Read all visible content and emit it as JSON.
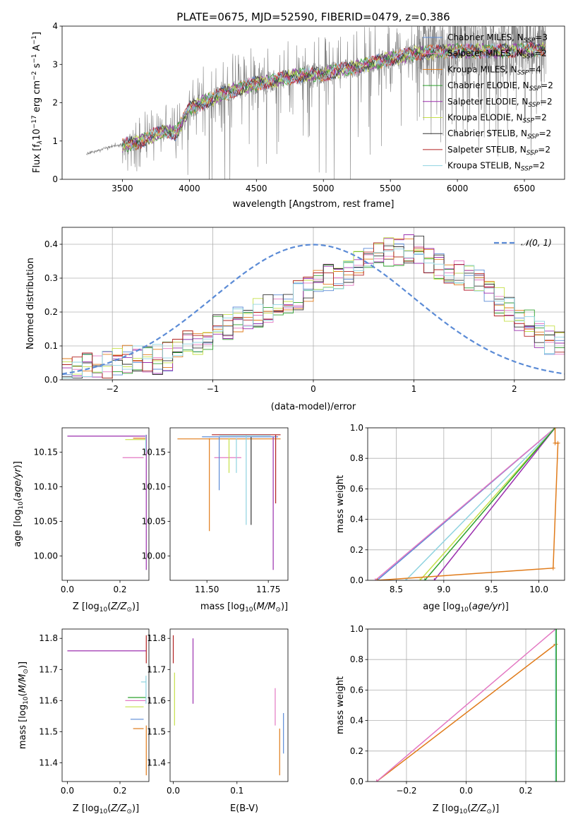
{
  "figure": {
    "title": "PLATE=0675, MJD=52590, FIBERID=0479, z=0.386"
  },
  "legend_items": [
    {
      "name": "Chabrier MILES, N",
      "sub": "SSP",
      "tail": "=3",
      "color": "#5b8bd6"
    },
    {
      "name": "Salpeter MILES, N",
      "sub": "SSP",
      "tail": "=2",
      "color": "#e377c2"
    },
    {
      "name": "Kroupa MILES, N",
      "sub": "SSP",
      "tail": "=4",
      "color": "#e07b1a"
    },
    {
      "name": "Chabrier ELODIE, N",
      "sub": "SSP",
      "tail": "=2",
      "color": "#2ca02c"
    },
    {
      "name": "Salpeter ELODIE, N",
      "sub": "SSP",
      "tail": "=2",
      "color": "#9b2fae"
    },
    {
      "name": "Kroupa ELODIE, N",
      "sub": "SSP",
      "tail": "=2",
      "color": "#c5e04a"
    },
    {
      "name": "Chabrier STELIB, N",
      "sub": "SSP",
      "tail": "=2",
      "color": "#333333"
    },
    {
      "name": "Salpeter STELIB, N",
      "sub": "SSP",
      "tail": "=2",
      "color": "#b22222"
    },
    {
      "name": "Kroupa STELIB, N",
      "sub": "SSP",
      "tail": "=2",
      "color": "#8fd3e0"
    }
  ],
  "chart_data": [
    {
      "id": "spectrum",
      "type": "line",
      "title": "PLATE=0675, MJD=52590, FIBERID=0479, z=0.386",
      "xlabel": "wavelength [Angstrom, rest frame]",
      "ylabel_parts": {
        "a": "Flux [f",
        "sub": "λ",
        "b": "10",
        "sup1": "−17",
        "c": " erg cm",
        "sup2": "−2",
        "d": " s",
        "sup3": "−1",
        "e": " A",
        "sup4": "−1",
        "f": "]"
      },
      "xlim": [
        3050,
        6800
      ],
      "ylim": [
        0,
        4
      ],
      "xticks": [
        3500,
        4000,
        4500,
        5000,
        5500,
        6000,
        6500
      ],
      "yticks": [
        0,
        1,
        2,
        3,
        4
      ],
      "data_x_range": [
        3230,
        6660
      ],
      "model_x_range": [
        3500,
        6660
      ],
      "continuum_knots": {
        "x": [
          3230,
          3400,
          3600,
          3800,
          3900,
          4000,
          4100,
          4300,
          4500,
          4800,
          5000,
          5200,
          5500,
          5700,
          6000,
          6300,
          6600
        ],
        "y": [
          0.65,
          0.85,
          0.95,
          1.25,
          1.2,
          1.85,
          2.0,
          2.3,
          2.5,
          2.7,
          2.75,
          2.9,
          3.15,
          3.3,
          3.35,
          3.35,
          3.4
        ]
      },
      "grid": false,
      "legend_location": "upper right"
    },
    {
      "id": "residual_histogram",
      "type": "step",
      "xlabel": "(data-model)/error",
      "ylabel": "Normed distribution",
      "xlim": [
        -2.5,
        2.5
      ],
      "ylim": [
        0,
        0.45
      ],
      "xticks": [
        -2,
        -1,
        0,
        1,
        2
      ],
      "yticks": [
        0.0,
        0.1,
        0.2,
        0.3,
        0.4
      ],
      "bin_edges_start": -2.5,
      "bin_width": 0.1,
      "reference_values": [
        0.02,
        0.03,
        0.04,
        0.035,
        0.045,
        0.05,
        0.06,
        0.055,
        0.06,
        0.06,
        0.07,
        0.09,
        0.1,
        0.12,
        0.13,
        0.15,
        0.16,
        0.18,
        0.17,
        0.2,
        0.21,
        0.22,
        0.23,
        0.25,
        0.27,
        0.28,
        0.3,
        0.31,
        0.32,
        0.35,
        0.36,
        0.36,
        0.38,
        0.38,
        0.39,
        0.38,
        0.36,
        0.34,
        0.33,
        0.31,
        0.3,
        0.28,
        0.25,
        0.23,
        0.2,
        0.19,
        0.17,
        0.14,
        0.12,
        0.1
      ],
      "gaussian_label": "𝒩(0, 1)",
      "gaussian_color": "#5b8bd6",
      "grid": true,
      "legend_location": "upper right"
    },
    {
      "id": "age_vs_Z",
      "type": "error_bars",
      "xlabel": "Z [log10(Z/Z⊙)]",
      "ylabel": "age  [log10(age/yr)]",
      "xlim": [
        -0.02,
        0.31
      ],
      "ylim": [
        9.965,
        10.185
      ],
      "xticks": [
        0.0,
        0.2
      ],
      "yticks": [
        10.0,
        10.05,
        10.1,
        10.15
      ],
      "hlines": [
        {
          "x0": 0.0,
          "x1": 0.3,
          "y": 10.173,
          "color": "#9b2fae"
        },
        {
          "x0": 0.22,
          "x1": 0.3,
          "y": 10.168,
          "color": "#c5e04a"
        },
        {
          "x0": 0.25,
          "x1": 0.3,
          "y": 10.17,
          "color": "#e07b1a"
        },
        {
          "x0": 0.21,
          "x1": 0.29,
          "y": 10.142,
          "color": "#e377c2"
        }
      ],
      "vlines": [
        {
          "x": 0.3,
          "y0": 10.04,
          "y1": 10.175,
          "color": "#9b2fae"
        },
        {
          "x": 0.3,
          "y0": 9.98,
          "y1": 10.04,
          "color": "#9b2fae"
        },
        {
          "x": 0.298,
          "y0": 10.15,
          "y1": 10.175,
          "color": "#8fd3e0"
        }
      ]
    },
    {
      "id": "age_vs_mass",
      "type": "error_bars",
      "xlabel": "mass [log10(M/M⊙)]",
      "xlim": [
        11.35,
        11.83
      ],
      "ylim": [
        9.965,
        10.185
      ],
      "xticks": [
        11.5,
        11.75
      ],
      "yticks": [
        10.0,
        10.05,
        10.1,
        10.15
      ],
      "hlines": [
        {
          "x0": 11.38,
          "x1": 11.8,
          "y": 10.169,
          "color": "#e07b1a"
        },
        {
          "x0": 11.48,
          "x1": 11.79,
          "y": 10.172,
          "color": "#5b8bd6"
        },
        {
          "x0": 11.52,
          "x1": 11.8,
          "y": 10.175,
          "color": "#b22222"
        },
        {
          "x0": 11.55,
          "x1": 11.76,
          "y": 10.174,
          "color": "#8fd3e0"
        },
        {
          "x0": 11.53,
          "x1": 11.64,
          "y": 10.142,
          "color": "#e377c2"
        }
      ],
      "vlines": [
        {
          "x": 11.51,
          "y0": 10.036,
          "y1": 10.17,
          "color": "#e07b1a"
        },
        {
          "x": 11.55,
          "y0": 10.095,
          "y1": 10.172,
          "color": "#5b8bd6"
        },
        {
          "x": 11.59,
          "y0": 10.12,
          "y1": 10.17,
          "color": "#c5e04a"
        },
        {
          "x": 11.62,
          "y0": 10.12,
          "y1": 10.17,
          "color": "#8fd3e0"
        },
        {
          "x": 11.66,
          "y0": 10.045,
          "y1": 10.174,
          "color": "#8fd3e0"
        },
        {
          "x": 11.68,
          "y0": 10.045,
          "y1": 10.172,
          "color": "#333333"
        },
        {
          "x": 11.77,
          "y0": 9.98,
          "y1": 10.172,
          "color": "#9b2fae"
        },
        {
          "x": 11.78,
          "y0": 10.076,
          "y1": 10.175,
          "color": "#b22222"
        }
      ]
    },
    {
      "id": "weight_vs_age",
      "type": "line",
      "xlabel": "age  [log10(age/yr)]",
      "ylabel": "mass weight",
      "xlim": [
        8.2,
        10.27
      ],
      "ylim": [
        0,
        1
      ],
      "xticks": [
        8.5,
        9.0,
        9.5,
        10.0
      ],
      "yticks": [
        0.0,
        0.2,
        0.4,
        0.6,
        0.8,
        1.0
      ],
      "grid": true,
      "series": [
        {
          "color": "#5b8bd6",
          "x": [
            8.3,
            10.17
          ],
          "y": [
            0.0,
            1.0
          ]
        },
        {
          "color": "#e377c2",
          "x": [
            8.28,
            10.17
          ],
          "y": [
            0.0,
            1.0
          ]
        },
        {
          "color": "#8fd3e0",
          "x": [
            8.6,
            10.17
          ],
          "y": [
            0.0,
            1.0
          ]
        },
        {
          "color": "#c5e04a",
          "x": [
            8.75,
            10.17
          ],
          "y": [
            0.0,
            1.0
          ]
        },
        {
          "color": "#9b2fae",
          "x": [
            8.9,
            10.17
          ],
          "y": [
            0.0,
            1.0
          ]
        },
        {
          "color": "#2ca02c",
          "x": [
            8.8,
            10.17
          ],
          "y": [
            0.0,
            1.0
          ]
        },
        {
          "color": "#e07b1a",
          "x": [
            8.3,
            10.15,
            10.2,
            10.17,
            10.17
          ],
          "y": [
            0.0,
            0.08,
            0.9,
            0.9,
            1.0
          ]
        }
      ]
    },
    {
      "id": "mass_vs_Z",
      "type": "error_bars",
      "xlabel": "Z [log10(Z/Z⊙)]",
      "ylabel": "mass [log10(M/M⊙)]",
      "xlim": [
        -0.02,
        0.31
      ],
      "ylim": [
        11.34,
        11.83
      ],
      "xticks": [
        0.0,
        0.2
      ],
      "yticks": [
        11.4,
        11.5,
        11.6,
        11.7,
        11.8
      ],
      "hlines": [
        {
          "x0": 0.0,
          "x1": 0.3,
          "y": 11.76,
          "color": "#9b2fae"
        },
        {
          "x0": 0.22,
          "x1": 0.3,
          "y": 11.6,
          "color": "#e377c2"
        },
        {
          "x0": 0.23,
          "x1": 0.3,
          "y": 11.61,
          "color": "#2ca02c"
        },
        {
          "x0": 0.22,
          "x1": 0.29,
          "y": 11.58,
          "color": "#c5e04a"
        },
        {
          "x0": 0.24,
          "x1": 0.29,
          "y": 11.54,
          "color": "#5b8bd6"
        },
        {
          "x0": 0.25,
          "x1": 0.29,
          "y": 11.51,
          "color": "#e07b1a"
        },
        {
          "x0": 0.28,
          "x1": 0.3,
          "y": 11.66,
          "color": "#8fd3e0"
        }
      ],
      "vlines": [
        {
          "x": 0.3,
          "y0": 11.72,
          "y1": 11.81,
          "color": "#b22222"
        },
        {
          "x": 0.3,
          "y0": 11.36,
          "y1": 11.52,
          "color": "#e07b1a"
        },
        {
          "x": 0.299,
          "y0": 11.59,
          "y1": 11.68,
          "color": "#8fd3e0"
        }
      ]
    },
    {
      "id": "mass_vs_EBV",
      "type": "error_bars",
      "xlabel": "E(B-V)",
      "xlim": [
        -0.005,
        0.18
      ],
      "ylim": [
        11.34,
        11.83
      ],
      "xticks": [
        0.0,
        0.1
      ],
      "yticks": [
        11.4,
        11.5,
        11.6,
        11.7,
        11.8
      ],
      "vlines": [
        {
          "x": 0.0,
          "y0": 11.72,
          "y1": 11.81,
          "color": "#b22222"
        },
        {
          "x": 0.002,
          "y0": 11.52,
          "y1": 11.69,
          "color": "#c5e04a"
        },
        {
          "x": 0.031,
          "y0": 11.59,
          "y1": 11.8,
          "color": "#9b2fae"
        },
        {
          "x": 0.16,
          "y0": 11.52,
          "y1": 11.64,
          "color": "#e377c2"
        },
        {
          "x": 0.167,
          "y0": 11.36,
          "y1": 11.51,
          "color": "#e07b1a"
        },
        {
          "x": 0.173,
          "y0": 11.43,
          "y1": 11.56,
          "color": "#5b8bd6"
        }
      ]
    },
    {
      "id": "weight_vs_Z",
      "type": "line",
      "xlabel": "Z [log10(Z/Z⊙)]",
      "ylabel": "mass weight",
      "xlim": [
        -0.33,
        0.33
      ],
      "ylim": [
        0,
        1
      ],
      "xticks": [
        -0.2,
        0.0,
        0.2
      ],
      "yticks": [
        0.0,
        0.2,
        0.4,
        0.6,
        0.8,
        1.0
      ],
      "grid": true,
      "series": [
        {
          "color": "#e07b1a",
          "x": [
            -0.3,
            0.3,
            0.3
          ],
          "y": [
            0.0,
            0.9,
            1.0
          ]
        },
        {
          "color": "#e377c2",
          "x": [
            -0.3,
            0.3
          ],
          "y": [
            0.0,
            1.0
          ]
        },
        {
          "color": "#8fd3e0",
          "x": [
            0.3,
            0.3
          ],
          "y": [
            0.0,
            1.0
          ]
        },
        {
          "color": "#2ca02c",
          "x": [
            0.302,
            0.302
          ],
          "y": [
            0.0,
            1.0
          ]
        }
      ]
    }
  ]
}
